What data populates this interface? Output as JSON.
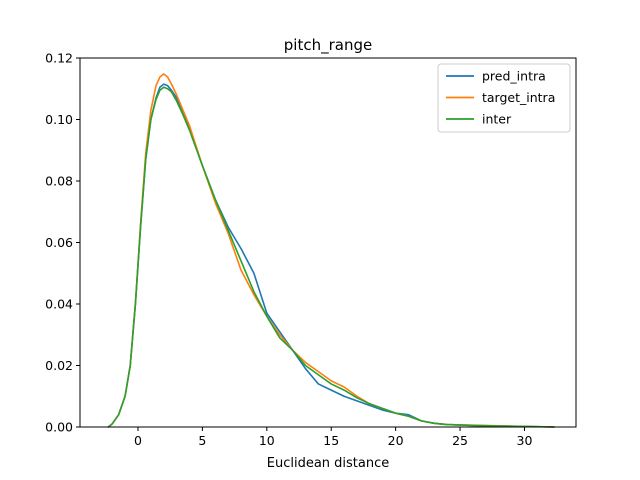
{
  "chart_data": {
    "type": "line",
    "title": "pitch_range",
    "xlabel": "Euclidean distance",
    "ylabel": "",
    "xlim": [
      -4.5,
      34.0
    ],
    "ylim": [
      0,
      0.12
    ],
    "xticks": [
      0,
      5,
      10,
      15,
      20,
      25,
      30
    ],
    "yticks": [
      0.0,
      0.02,
      0.04,
      0.06,
      0.08,
      0.1,
      0.12
    ],
    "ytick_labels": [
      "0.00",
      "0.02",
      "0.04",
      "0.06",
      "0.08",
      "0.10",
      "0.12"
    ],
    "grid": false,
    "legend_position": "top-right",
    "series": [
      {
        "name": "pred_intra",
        "color": "#1f77b4",
        "x": [
          -2.3,
          -2.0,
          -1.5,
          -1.0,
          -0.6,
          -0.2,
          0.2,
          0.6,
          1.0,
          1.4,
          1.7,
          2.0,
          2.3,
          2.6,
          3.0,
          3.5,
          4.0,
          5.0,
          6.0,
          7.0,
          8.0,
          9.0,
          10.0,
          11.0,
          12.0,
          13.0,
          14.0,
          15.0,
          16.0,
          17.0,
          18.0,
          19.0,
          20.0,
          21.0,
          22.0,
          23.0,
          24.0,
          26.0,
          28.0,
          30.0,
          32.3
        ],
        "y": [
          0.0,
          0.001,
          0.004,
          0.01,
          0.02,
          0.04,
          0.065,
          0.087,
          0.1,
          0.107,
          0.1105,
          0.1115,
          0.111,
          0.1095,
          0.107,
          0.102,
          0.097,
          0.085,
          0.074,
          0.065,
          0.058,
          0.05,
          0.037,
          0.031,
          0.025,
          0.019,
          0.014,
          0.012,
          0.01,
          0.0085,
          0.007,
          0.0055,
          0.0045,
          0.004,
          0.002,
          0.0012,
          0.0008,
          0.0005,
          0.0003,
          0.0002,
          0.0
        ]
      },
      {
        "name": "target_intra",
        "color": "#ff7f0e",
        "x": [
          -2.3,
          -2.0,
          -1.5,
          -1.0,
          -0.6,
          -0.2,
          0.2,
          0.6,
          1.0,
          1.4,
          1.7,
          2.0,
          2.3,
          2.6,
          3.0,
          3.5,
          4.0,
          5.0,
          6.0,
          7.0,
          8.0,
          9.0,
          10.0,
          11.0,
          12.0,
          13.0,
          14.0,
          15.0,
          16.0,
          17.0,
          18.0,
          19.0,
          20.0,
          21.0,
          22.0,
          23.0,
          24.0,
          26.0,
          28.0,
          30.0,
          32.3
        ],
        "y": [
          0.0,
          0.001,
          0.004,
          0.01,
          0.02,
          0.04,
          0.066,
          0.089,
          0.103,
          0.111,
          0.1138,
          0.1148,
          0.1138,
          0.1115,
          0.108,
          0.103,
          0.098,
          0.085,
          0.073,
          0.063,
          0.051,
          0.043,
          0.036,
          0.03,
          0.025,
          0.021,
          0.018,
          0.015,
          0.013,
          0.01,
          0.0075,
          0.006,
          0.0045,
          0.0035,
          0.002,
          0.0012,
          0.0008,
          0.0006,
          0.0004,
          0.0002,
          0.0
        ]
      },
      {
        "name": "inter",
        "color": "#2ca02c",
        "x": [
          -2.3,
          -2.0,
          -1.5,
          -1.0,
          -0.6,
          -0.2,
          0.2,
          0.6,
          1.0,
          1.4,
          1.7,
          2.0,
          2.3,
          2.6,
          3.0,
          3.5,
          4.0,
          5.0,
          6.0,
          7.0,
          8.0,
          9.0,
          10.0,
          11.0,
          12.0,
          13.0,
          14.0,
          15.0,
          16.0,
          17.0,
          18.0,
          19.0,
          20.0,
          21.0,
          22.0,
          23.0,
          24.0,
          26.0,
          28.0,
          30.0,
          32.3
        ],
        "y": [
          0.0,
          0.001,
          0.004,
          0.01,
          0.02,
          0.04,
          0.065,
          0.087,
          0.1,
          0.1065,
          0.1095,
          0.1105,
          0.11,
          0.109,
          0.106,
          0.1015,
          0.0965,
          0.085,
          0.074,
          0.064,
          0.054,
          0.044,
          0.036,
          0.029,
          0.025,
          0.02,
          0.017,
          0.014,
          0.012,
          0.0095,
          0.0075,
          0.006,
          0.0045,
          0.0035,
          0.002,
          0.0012,
          0.0008,
          0.0005,
          0.0003,
          0.0002,
          0.0
        ]
      }
    ]
  }
}
